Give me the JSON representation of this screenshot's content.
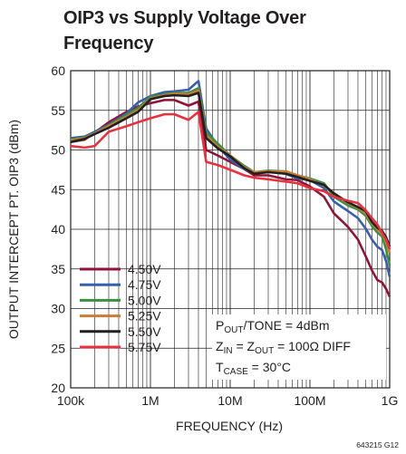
{
  "chart_data": {
    "type": "line",
    "title_lines": [
      "OIP3 vs Supply Voltage Over",
      "Frequency"
    ],
    "xlabel": "FREQUENCY (Hz)",
    "ylabel": "OUTPUT INTERCEPT PT. OIP3 (dBm)",
    "x_scale": "log",
    "xlim": [
      100000,
      1000000000
    ],
    "ylim": [
      20,
      60
    ],
    "x_ticks": [
      {
        "value": 100000,
        "label": "100k"
      },
      {
        "value": 1000000,
        "label": "1M"
      },
      {
        "value": 10000000,
        "label": "10M"
      },
      {
        "value": 100000000,
        "label": "100M"
      },
      {
        "value": 1000000000,
        "label": "1G"
      }
    ],
    "y_ticks": [
      20,
      25,
      30,
      35,
      40,
      45,
      50,
      55,
      60
    ],
    "grid": true,
    "legend_position": "bottom-left",
    "annotation": {
      "pout_main": "P",
      "pout_sub": "OUT",
      "pout_rest": "/TONE = 4dBm",
      "zin_main": "Z",
      "zin_sub": "IN",
      "zout_mid": " = Z",
      "zout_sub": "OUT",
      "z_rest": " = 100Ω DIFF",
      "tcase_main": "T",
      "tcase_sub": "CASE",
      "tcase_rest": " = 30°C"
    },
    "figure_code": "643215 G12",
    "series": [
      {
        "name": "4.50V",
        "color": "#8e1538",
        "points": [
          [
            100000,
            51
          ],
          [
            150000,
            51.3
          ],
          [
            200000,
            52.2
          ],
          [
            300000,
            53.5
          ],
          [
            500000,
            54.8
          ],
          [
            700000,
            55.5
          ],
          [
            1000000,
            55.9
          ],
          [
            1500000,
            56.3
          ],
          [
            2000000,
            56.3
          ],
          [
            3000000,
            55.6
          ],
          [
            4000000,
            56.1
          ],
          [
            5000000,
            50
          ],
          [
            7000000,
            49.3
          ],
          [
            10000000,
            48.5
          ],
          [
            15000000,
            47.6
          ],
          [
            20000000,
            46.8
          ],
          [
            30000000,
            46.8
          ],
          [
            50000000,
            46.3
          ],
          [
            70000000,
            46.2
          ],
          [
            100000000,
            45.4
          ],
          [
            150000000,
            44.1
          ],
          [
            200000000,
            42
          ],
          [
            300000000,
            40.3
          ],
          [
            400000000,
            38.7
          ],
          [
            500000000,
            36.6
          ],
          [
            600000000,
            34.8
          ],
          [
            700000000,
            33.6
          ],
          [
            800000000,
            33.3
          ],
          [
            900000000,
            32.5
          ],
          [
            1000000000,
            31.5
          ]
        ]
      },
      {
        "name": "4.75V",
        "color": "#3a5fa8",
        "points": [
          [
            100000,
            51.5
          ],
          [
            150000,
            51.7
          ],
          [
            200000,
            52.3
          ],
          [
            300000,
            53.2
          ],
          [
            500000,
            54.6
          ],
          [
            700000,
            56
          ],
          [
            1000000,
            56.8
          ],
          [
            1500000,
            57.3
          ],
          [
            2000000,
            57.4
          ],
          [
            3000000,
            57.6
          ],
          [
            4000000,
            58.7
          ],
          [
            5000000,
            52.7
          ],
          [
            7000000,
            50.5
          ],
          [
            10000000,
            48.8
          ],
          [
            15000000,
            47.6
          ],
          [
            20000000,
            47
          ],
          [
            30000000,
            47.3
          ],
          [
            50000000,
            47
          ],
          [
            70000000,
            46.4
          ],
          [
            100000000,
            46.2
          ],
          [
            150000000,
            45.2
          ],
          [
            200000000,
            43.5
          ],
          [
            300000000,
            42.3
          ],
          [
            400000000,
            41.4
          ],
          [
            500000000,
            40.1
          ],
          [
            600000000,
            38.7
          ],
          [
            700000000,
            37.8
          ],
          [
            800000000,
            37.4
          ],
          [
            900000000,
            36
          ],
          [
            1000000000,
            34
          ]
        ]
      },
      {
        "name": "5.00V",
        "color": "#3e8f46",
        "points": [
          [
            100000,
            51.3
          ],
          [
            150000,
            51.6
          ],
          [
            200000,
            52.1
          ],
          [
            300000,
            53.1
          ],
          [
            500000,
            54.4
          ],
          [
            700000,
            55.3
          ],
          [
            1000000,
            56.7
          ],
          [
            1500000,
            57
          ],
          [
            2000000,
            57.2
          ],
          [
            3000000,
            57.2
          ],
          [
            4000000,
            57.8
          ],
          [
            5000000,
            52.2
          ],
          [
            7000000,
            50.8
          ],
          [
            10000000,
            49.3
          ],
          [
            15000000,
            48
          ],
          [
            20000000,
            47.2
          ],
          [
            30000000,
            47.4
          ],
          [
            50000000,
            47.3
          ],
          [
            70000000,
            46.8
          ],
          [
            100000000,
            46.4
          ],
          [
            150000000,
            45.8
          ],
          [
            200000000,
            44.1
          ],
          [
            300000000,
            43
          ],
          [
            400000000,
            42.5
          ],
          [
            500000000,
            41.7
          ],
          [
            600000000,
            40.4
          ],
          [
            700000000,
            39.6
          ],
          [
            800000000,
            39.1
          ],
          [
            900000000,
            37.5
          ],
          [
            1000000000,
            35.4
          ]
        ]
      },
      {
        "name": "5.25V",
        "color": "#c87e34",
        "points": [
          [
            100000,
            51.2
          ],
          [
            150000,
            51.5
          ],
          [
            200000,
            52.1
          ],
          [
            300000,
            53
          ],
          [
            500000,
            54.2
          ],
          [
            700000,
            55
          ],
          [
            1000000,
            56.5
          ],
          [
            1500000,
            56.9
          ],
          [
            2000000,
            57.1
          ],
          [
            3000000,
            57
          ],
          [
            4000000,
            57.5
          ],
          [
            5000000,
            51.8
          ],
          [
            7000000,
            50.4
          ],
          [
            10000000,
            49.3
          ],
          [
            15000000,
            47.8
          ],
          [
            20000000,
            47.2
          ],
          [
            30000000,
            47.3
          ],
          [
            50000000,
            47.3
          ],
          [
            70000000,
            46.8
          ],
          [
            100000000,
            46.3
          ],
          [
            150000000,
            45.5
          ],
          [
            200000000,
            44.6
          ],
          [
            300000000,
            43.3
          ],
          [
            400000000,
            42.7
          ],
          [
            500000000,
            42
          ],
          [
            600000000,
            40.7
          ],
          [
            700000000,
            40
          ],
          [
            800000000,
            39.5
          ],
          [
            900000000,
            38.5
          ],
          [
            1000000000,
            37
          ]
        ]
      },
      {
        "name": "5.50V",
        "color": "#231f20",
        "points": [
          [
            100000,
            51
          ],
          [
            150000,
            51.4
          ],
          [
            200000,
            52
          ],
          [
            300000,
            52.8
          ],
          [
            500000,
            54
          ],
          [
            700000,
            54.8
          ],
          [
            1000000,
            56.4
          ],
          [
            1500000,
            56.8
          ],
          [
            2000000,
            56.9
          ],
          [
            3000000,
            56.8
          ],
          [
            4000000,
            57.2
          ],
          [
            5000000,
            51.5
          ],
          [
            7000000,
            50.2
          ],
          [
            10000000,
            49.2
          ],
          [
            15000000,
            47.7
          ],
          [
            20000000,
            47
          ],
          [
            30000000,
            47.2
          ],
          [
            50000000,
            47
          ],
          [
            70000000,
            46.6
          ],
          [
            100000000,
            46.1
          ],
          [
            150000000,
            45.6
          ],
          [
            200000000,
            44.5
          ],
          [
            300000000,
            43.4
          ],
          [
            400000000,
            42.8
          ],
          [
            500000000,
            42.3
          ],
          [
            600000000,
            40.9
          ],
          [
            700000000,
            40.2
          ],
          [
            800000000,
            39.8
          ],
          [
            900000000,
            39
          ],
          [
            1000000000,
            37.8
          ]
        ]
      },
      {
        "name": "5.75V",
        "color": "#e8313f",
        "points": [
          [
            100000,
            50.5
          ],
          [
            150000,
            50.3
          ],
          [
            200000,
            50.5
          ],
          [
            300000,
            52.3
          ],
          [
            500000,
            53
          ],
          [
            700000,
            53.5
          ],
          [
            1000000,
            54
          ],
          [
            1500000,
            54.5
          ],
          [
            2000000,
            54.5
          ],
          [
            3000000,
            53.8
          ],
          [
            4000000,
            54.8
          ],
          [
            5000000,
            48.5
          ],
          [
            7000000,
            48.1
          ],
          [
            10000000,
            47.5
          ],
          [
            15000000,
            46.8
          ],
          [
            20000000,
            46.5
          ],
          [
            30000000,
            46.3
          ],
          [
            50000000,
            46
          ],
          [
            70000000,
            45.8
          ],
          [
            100000000,
            45.2
          ],
          [
            150000000,
            44.8
          ],
          [
            200000000,
            44.1
          ],
          [
            300000000,
            43.6
          ],
          [
            400000000,
            43.3
          ],
          [
            500000000,
            42.4
          ],
          [
            600000000,
            41.4
          ],
          [
            700000000,
            40.6
          ],
          [
            800000000,
            39.6
          ],
          [
            900000000,
            38.7
          ],
          [
            1000000000,
            37.5
          ]
        ]
      }
    ]
  }
}
